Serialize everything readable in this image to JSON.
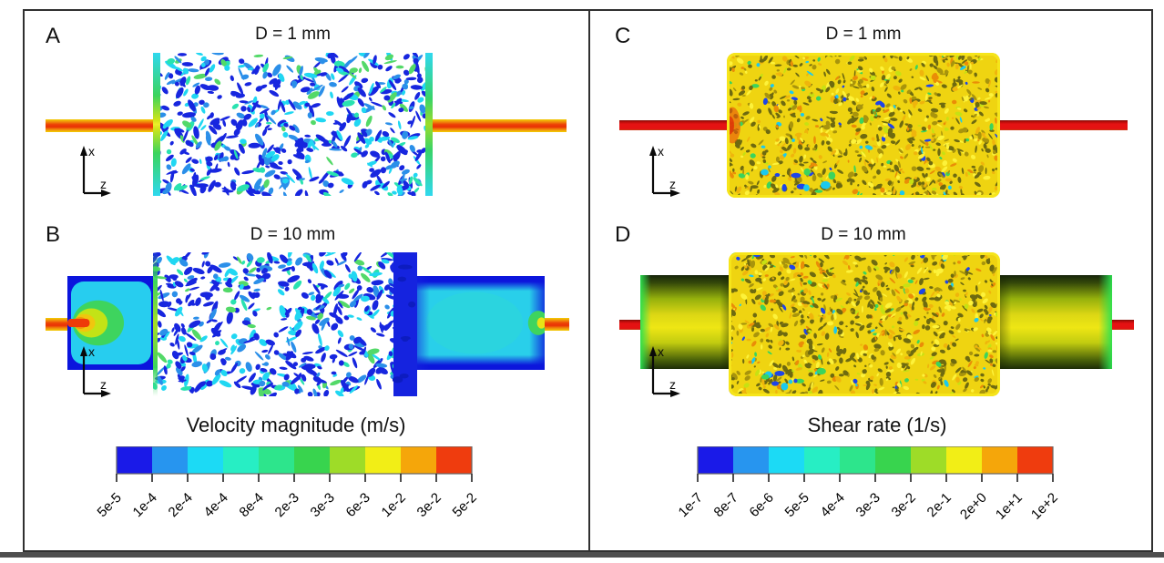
{
  "figure": {
    "panels": [
      {
        "id": "A",
        "label": "A",
        "title": "D = 1 mm"
      },
      {
        "id": "B",
        "label": "B",
        "title": "D = 10 mm"
      },
      {
        "id": "C",
        "label": "C",
        "title": "D = 1 mm"
      },
      {
        "id": "D",
        "label": "D",
        "title": "D = 10 mm"
      }
    ],
    "axis": {
      "vertical": "x",
      "horizontal": "z"
    },
    "colorbars": [
      {
        "id": "velocity",
        "title": "Velocity magnitude (m/s)",
        "ticks": [
          "5e-5",
          "1e-4",
          "2e-4",
          "4e-4",
          "8e-4",
          "2e-3",
          "3e-3",
          "6e-3",
          "1e-2",
          "3e-2",
          "5e-2"
        ],
        "segment_colors": [
          "#1a1ae8",
          "#2795ef",
          "#1cdaf5",
          "#27eec4",
          "#2de58c",
          "#38d44e",
          "#9edc28",
          "#f2ee16",
          "#f5a60a",
          "#ef3c0e"
        ]
      },
      {
        "id": "shear",
        "title": "Shear rate (1/s)",
        "ticks": [
          "1e-7",
          "8e-7",
          "6e-6",
          "5e-5",
          "4e-4",
          "3e-3",
          "3e-2",
          "2e-1",
          "2e+0",
          "1e+1",
          "1e+2"
        ],
        "segment_colors": [
          "#1a1ae8",
          "#2795ef",
          "#1cdaf5",
          "#27eec4",
          "#2de58c",
          "#38d44e",
          "#9edc28",
          "#f2ee16",
          "#f5a60a",
          "#ef3c0e"
        ]
      }
    ]
  }
}
